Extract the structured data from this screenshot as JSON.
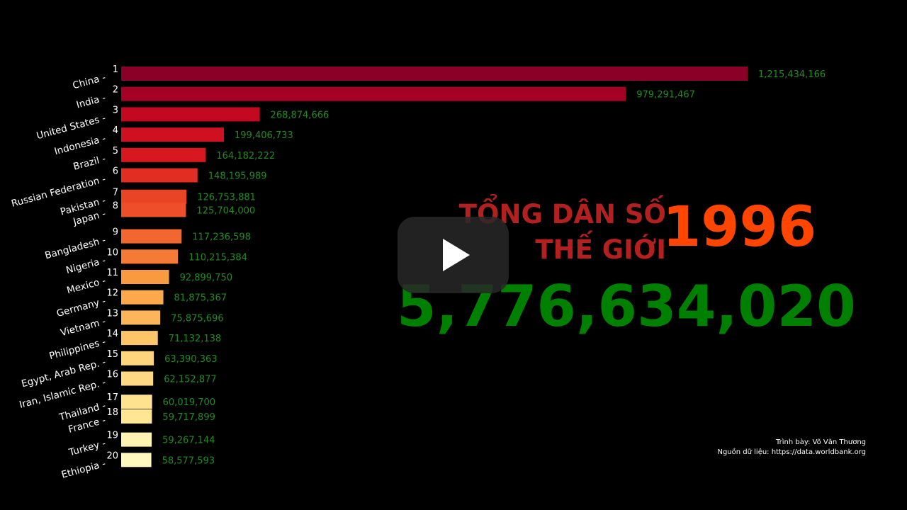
{
  "chart_data": {
    "type": "bar",
    "orientation": "horizontal",
    "year": "1996",
    "title_lines": [
      "TỔNG DÂN SỐ",
      "THẾ GIỚI"
    ],
    "total": "5,776,634,020",
    "ranks": [
      1,
      2,
      3,
      4,
      5,
      6,
      7,
      8,
      9,
      10,
      11,
      12,
      13,
      14,
      15,
      16,
      17,
      18,
      19,
      20
    ],
    "categories": [
      "China",
      "India",
      "United States",
      "Indonesia",
      "Brazil",
      "Russian Federation",
      "Pakistan",
      "Japan",
      "Bangladesh",
      "Nigeria",
      "Mexico",
      "Germany",
      "Vietnam",
      "Philippines",
      "Egypt, Arab Rep.",
      "Iran, Islamic Rep.",
      "Thailand",
      "France",
      "Turkey",
      "Ethiopia"
    ],
    "values": [
      1215434166,
      979291467,
      268874666,
      199406733,
      164182222,
      148195989,
      126753881,
      125704000,
      117236598,
      110215384,
      92899750,
      81875367,
      75875696,
      71132138,
      63390363,
      62152877,
      60019700,
      59717899,
      59267144,
      58577593
    ],
    "value_labels": [
      "1,215,434,166",
      "979,291,467",
      "268,874,666",
      "199,406,733",
      "164,182,222",
      "148,195,989",
      "126,753,881",
      "125,704,000",
      "117,236,598",
      "110,215,384",
      "92,899,750",
      "81,875,367",
      "75,875,696",
      "71,132,138",
      "63,390,363",
      "62,152,877",
      "60,019,700",
      "59,717,899",
      "59,267,144",
      "58,577,593"
    ],
    "bar_colors": [
      "#8b0026",
      "#a50026",
      "#c4081f",
      "#cf1020",
      "#d9171f",
      "#e12d22",
      "#ea4427",
      "#ee4f2a",
      "#f26630",
      "#f57a35",
      "#fa9a40",
      "#fca84b",
      "#fcb55a",
      "#fdc468",
      "#fed47c",
      "#fed882",
      "#fee28e",
      "#fee693",
      "#fff3b2",
      "#fff8bf"
    ],
    "value_label_color": "#228b22",
    "background": "#000000",
    "credits": [
      "Trình bày: Võ Văn Thương",
      "Nguồn dữ liệu: https://data.worldbank.org"
    ]
  },
  "player": {
    "play_icon": "play-icon"
  }
}
